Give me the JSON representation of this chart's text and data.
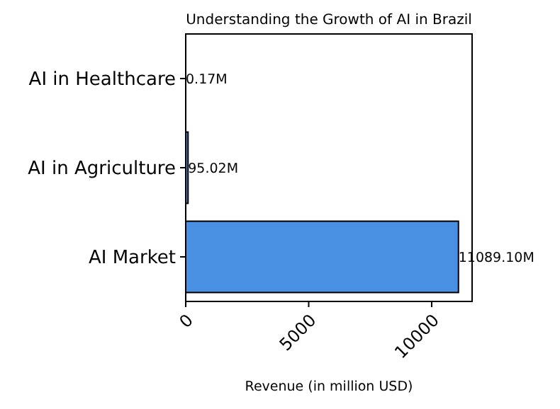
{
  "chart_data": {
    "type": "bar",
    "orientation": "horizontal",
    "title": "Understanding the Growth of AI in Brazil",
    "xlabel": "Revenue (in million USD)",
    "categories": [
      "AI in Healthcare",
      "AI in Agriculture",
      "AI Market"
    ],
    "values": [
      0.17,
      95.02,
      11089.1
    ],
    "value_labels": [
      "0.17M",
      "95.02M",
      "11089.10M"
    ],
    "color": "#4a90e2",
    "xlim": [
      0,
      11644
    ],
    "xticks": [
      0,
      5000,
      10000
    ],
    "grid": false
  }
}
